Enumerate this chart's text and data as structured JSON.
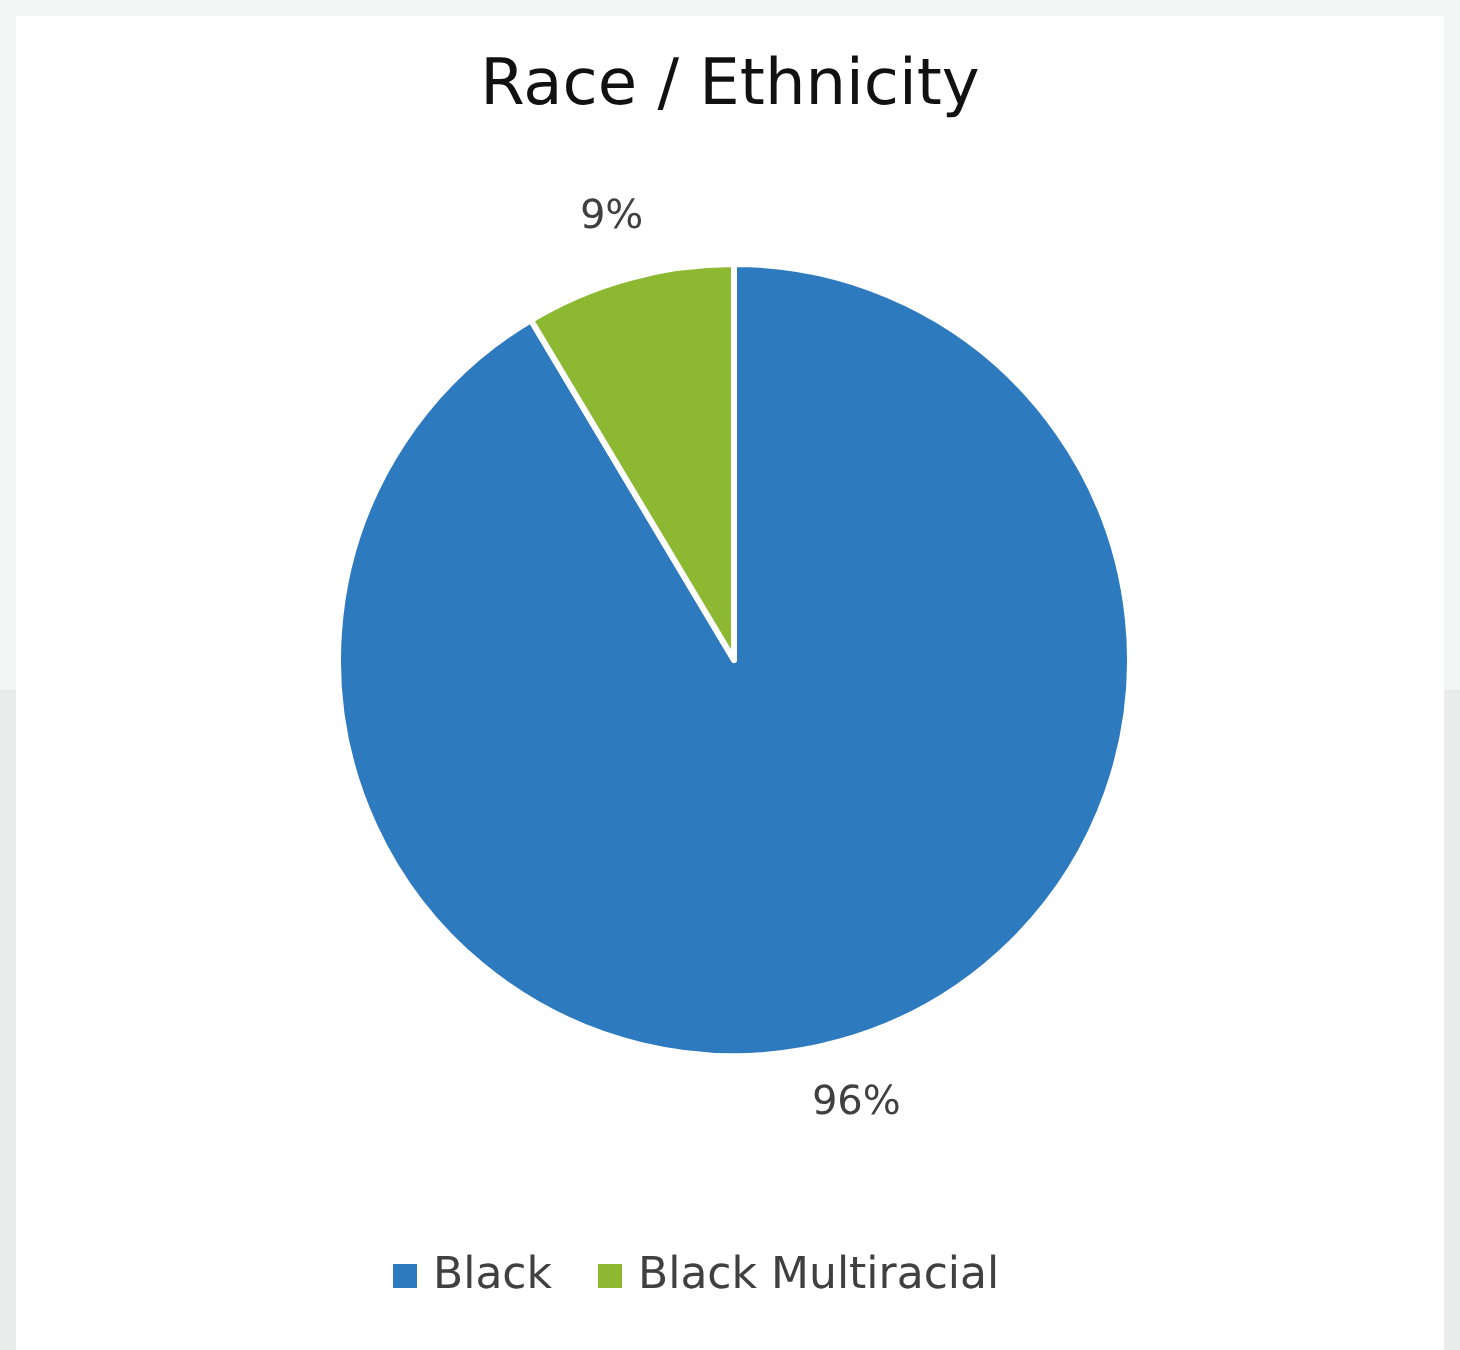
{
  "chart_data": {
    "type": "pie",
    "title": "Race / Ethnicity",
    "categories": [
      "Black",
      "Black Multiracial"
    ],
    "values": [
      96,
      9
    ],
    "colors": [
      "#2e7abf",
      "#8cb832"
    ],
    "value_labels": [
      "96%",
      "9%"
    ],
    "legend": "bottom"
  }
}
